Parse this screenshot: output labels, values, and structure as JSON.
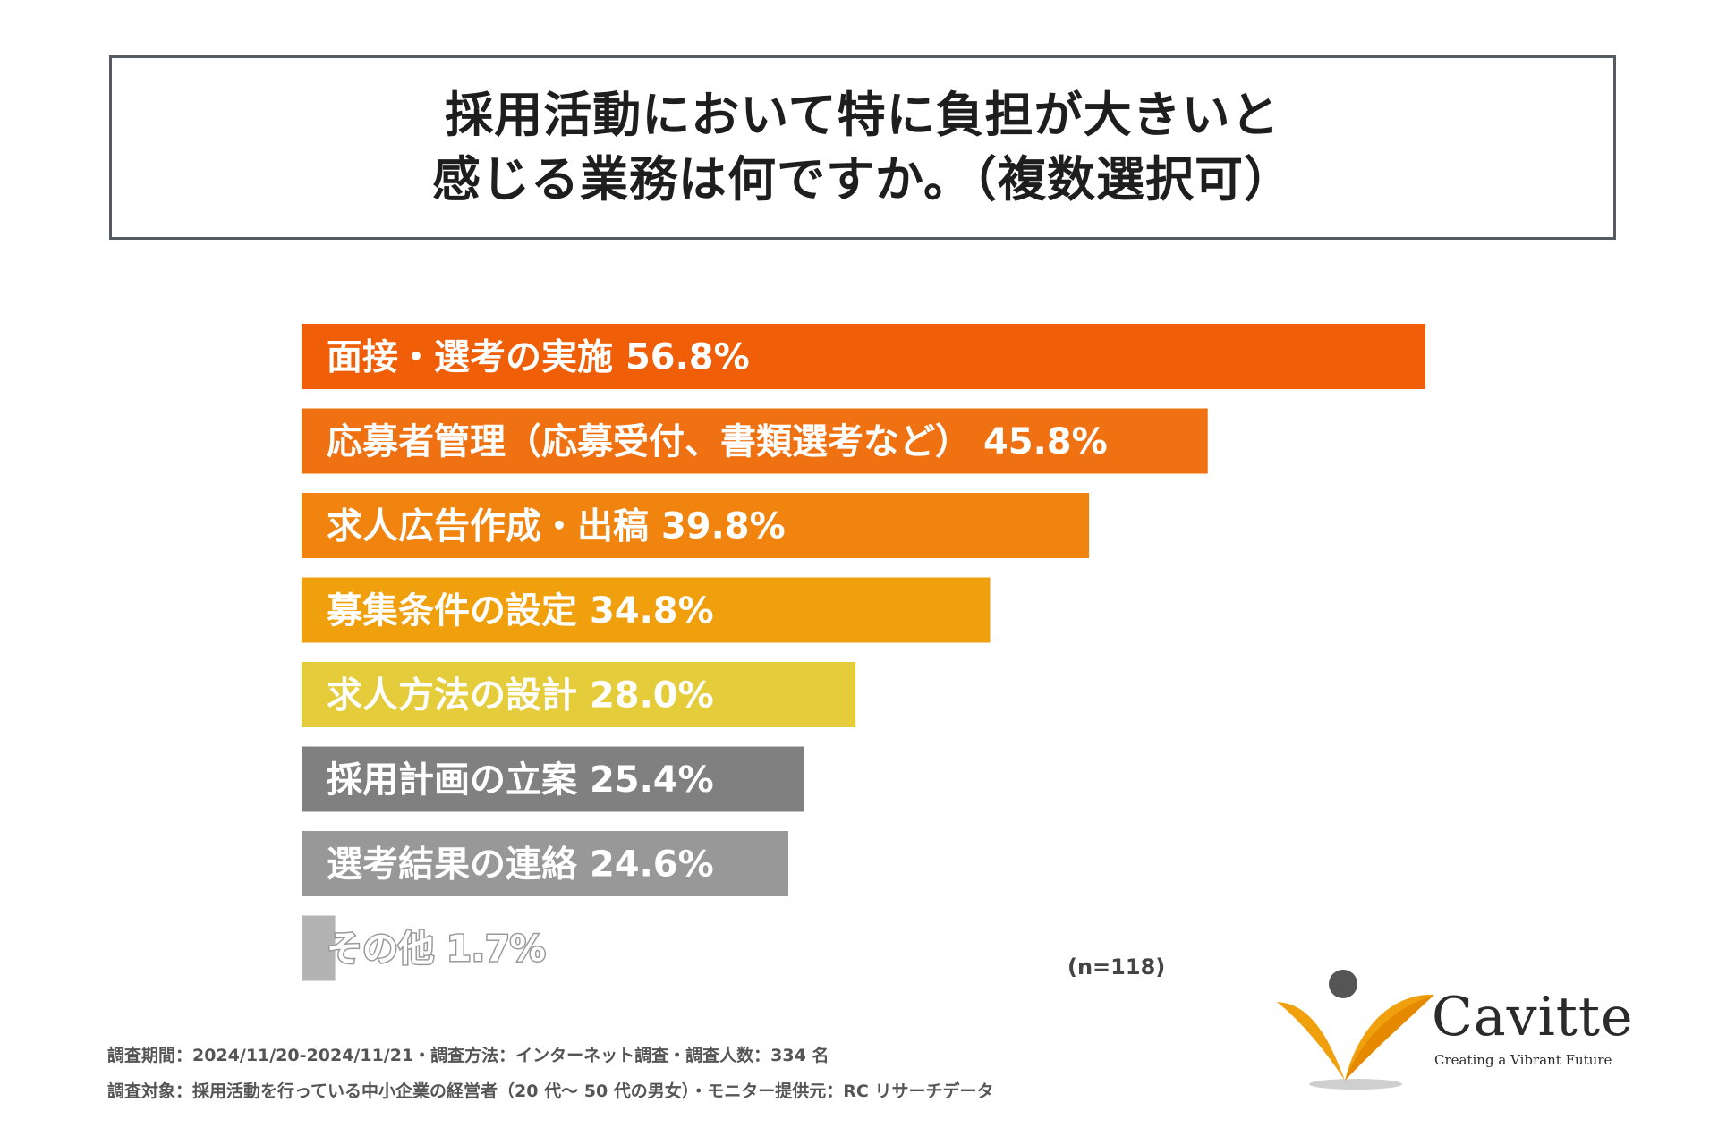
{
  "header": {
    "title_line1": "採用活動において特に負担が大きいと",
    "title_line2": "感じる業務は何ですか。（複数選択可）"
  },
  "chart_data": {
    "type": "bar",
    "orientation": "horizontal",
    "title": "採用活動において特に負担が大きいと感じる業務は何ですか。（複数選択可）",
    "categories": [
      "面接・選考の実施",
      "応募者管理（応募受付、書類選考など）",
      "求人広告作成・出稿",
      "募集条件の設定",
      "求人方法の設計",
      "採用計画の立案",
      "選考結果の連絡",
      "その他"
    ],
    "values": [
      56.8,
      45.8,
      39.8,
      34.8,
      28.0,
      25.4,
      24.6,
      1.7
    ],
    "value_labels": [
      "56.8%",
      "45.8%",
      "39.8%",
      "34.8%",
      "28.0%",
      "25.4%",
      "24.6%",
      "1.7%"
    ],
    "colors": [
      "#f05f07",
      "#f07112",
      "#f0840f",
      "#f0a00d",
      "#e5cc3b",
      "#808080",
      "#989898",
      "#b3b3b3"
    ],
    "unit": "%",
    "xlim": [
      0,
      56.8
    ],
    "grid": false,
    "legend": "none"
  },
  "sample_note": "(n=118)",
  "footnotes": {
    "line1": "調査期間：2024/11/20-2024/11/21・調査方法：インターネット調査・調査人数：334 名",
    "line2": "調査対象：採用活動を行っている中小企業の経営者（20 代～ 50 代の男女）・モニター提供元：RC リサーチデータ"
  },
  "logo": {
    "name": "Cavitte",
    "tagline": "Creating a Vibrant Future",
    "accent_color": "#f0a00d",
    "dot_color": "#555555"
  }
}
